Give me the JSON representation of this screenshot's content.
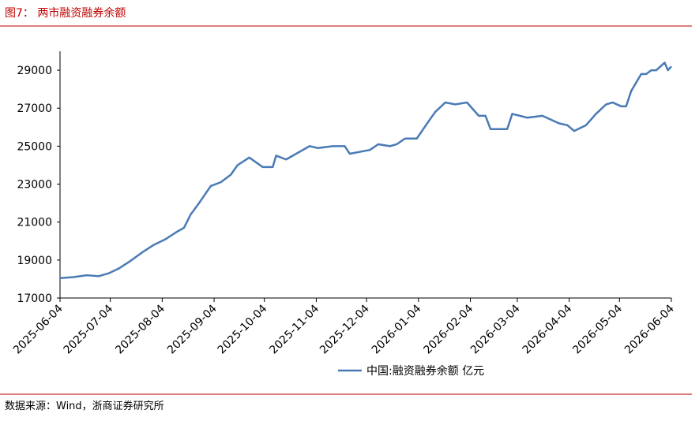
{
  "chart_data": {
    "type": "line",
    "title": "图7：  两市融资融券余额",
    "source": "数据来源：Wind，浙商证券研究所",
    "x": [
      "2025-06-04",
      "2025-06-12",
      "2025-06-20",
      "2025-06-27",
      "2025-07-03",
      "2025-07-09",
      "2025-07-16",
      "2025-07-23",
      "2025-07-30",
      "2025-08-06",
      "2025-08-13",
      "2025-08-17",
      "2025-08-21",
      "2025-08-26",
      "2025-09-02",
      "2025-09-08",
      "2025-09-14",
      "2025-09-18",
      "2025-09-25",
      "2025-10-03",
      "2025-10-09",
      "2025-10-11",
      "2025-10-17",
      "2025-10-23",
      "2025-10-31",
      "2025-11-05",
      "2025-11-14",
      "2025-11-21",
      "2025-11-24",
      "2025-12-06",
      "2025-12-11",
      "2025-12-18",
      "2025-12-22",
      "2025-12-27",
      "2026-01-03",
      "2026-01-10",
      "2026-01-14",
      "2026-01-20",
      "2026-01-26",
      "2026-02-02",
      "2026-02-09",
      "2026-02-13",
      "2026-02-16",
      "2026-02-26",
      "2026-03-01",
      "2026-03-10",
      "2026-03-19",
      "2026-03-29",
      "2026-04-03",
      "2026-04-07",
      "2026-04-14",
      "2026-04-20",
      "2026-04-26",
      "2026-04-30",
      "2026-05-05",
      "2026-05-08",
      "2026-05-11",
      "2026-05-17",
      "2026-05-20",
      "2026-05-23",
      "2026-05-26",
      "2026-05-31",
      "2026-06-02",
      "2026-06-04"
    ],
    "series": [
      {
        "name": "中国:融资融券余额 亿元",
        "color": "#4a7ab5",
        "values": [
          18050,
          18100,
          18200,
          18150,
          18300,
          18550,
          18950,
          19400,
          19800,
          20100,
          20500,
          20700,
          21400,
          22000,
          22900,
          23100,
          23500,
          24000,
          24400,
          23900,
          23900,
          24500,
          24300,
          24600,
          25000,
          24900,
          25000,
          25000,
          24600,
          24800,
          25100,
          25000,
          25100,
          25400,
          25400,
          26300,
          26800,
          27300,
          27200,
          27300,
          26600,
          26600,
          25900,
          25900,
          26700,
          26500,
          26600,
          26200,
          26100,
          25800,
          26100,
          26700,
          27200,
          27300,
          27100,
          27100,
          27900,
          28800,
          28800,
          29000,
          29000,
          29400,
          29000,
          29200
        ]
      }
    ],
    "xlim": [
      "2025-06-04",
      "2026-06-04"
    ],
    "xticks": [
      "2025-06-04",
      "2025-07-04",
      "2025-08-04",
      "2025-09-04",
      "2025-10-04",
      "2025-11-04",
      "2025-12-04",
      "2026-01-04",
      "2026-02-04",
      "2026-03-04",
      "2026-04-04",
      "2026-05-04",
      "2026-06-04"
    ],
    "ylim": [
      17000,
      30000
    ],
    "yticks": [
      17000,
      19000,
      21000,
      23000,
      25000,
      27000,
      29000
    ]
  }
}
